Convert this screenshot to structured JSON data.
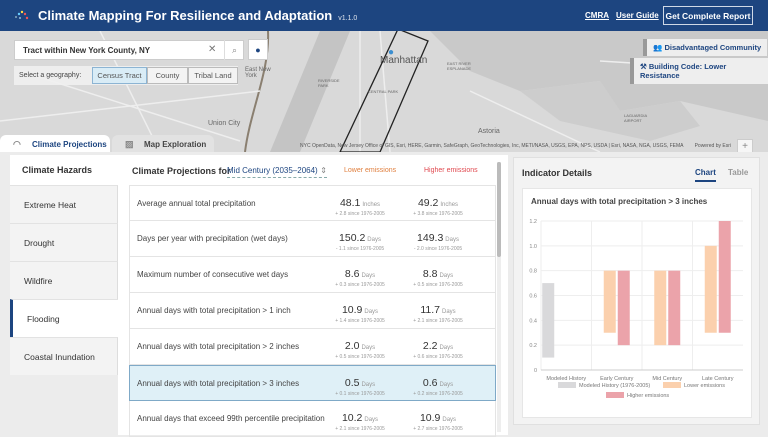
{
  "header": {
    "title": "Climate Mapping For Resilience and Adaptation",
    "version": "v1.1.0",
    "links": [
      "CMRA",
      "User Guide"
    ],
    "report_button": "Get Complete Report"
  },
  "map": {
    "search_value": "Tract within New York County, NY",
    "geography_label": "Select a geography:",
    "geographies": [
      "Census Tract",
      "County",
      "Tribal Land"
    ],
    "selected_geography": "Census Tract",
    "labels": [
      "Manhattan",
      "Union City",
      "Astoria",
      "East New York",
      "RIVERSIDE PARK",
      "CENTRAL PARK",
      "EAST RIVER ESPLANADE",
      "LAGUARDIA AIRPORT"
    ],
    "badges": [
      "Disadvantaged Community",
      "Building Code: Lower Resistance"
    ],
    "zoom_in": "+",
    "zoom_out": "−",
    "attribution": "NYC OpenData, New Jersey Office of GIS, Esri, HERE, Garmin, SafeGraph, GeoTechnologies, Inc, METI/NASA, USGS, EPA, NPS, USDA | Esri, NASA, NGA, USGS, FEMA",
    "powered": "Powered by Esri"
  },
  "tabs": [
    "Climate Projections",
    "Map Exploration"
  ],
  "sidebar": {
    "title": "Climate Hazards",
    "items": [
      "Extreme Heat",
      "Drought",
      "Wildfire",
      "Flooding",
      "Coastal Inundation"
    ],
    "selected": "Flooding"
  },
  "projections": {
    "title": "Climate Projections for",
    "period": "Mid Century (2035–2064)",
    "lower_label": "Lower emissions",
    "higher_label": "Higher emissions",
    "rows": [
      {
        "label": "Average annual total precipitation",
        "lo": "48.1",
        "lo_unit": "Inches",
        "lo_delta": "+ 2.8 since 1976-2005",
        "hi": "49.2",
        "hi_unit": "Inches",
        "hi_delta": "+ 3.8 since 1976-2005"
      },
      {
        "label": "Days per year with precipitation (wet days)",
        "lo": "150.2",
        "lo_unit": "Days",
        "lo_delta": "- 1.1 since 1976-2005",
        "hi": "149.3",
        "hi_unit": "Days",
        "hi_delta": "- 2.0 since 1976-2005"
      },
      {
        "label": "Maximum number of consecutive wet days",
        "lo": "8.6",
        "lo_unit": "Days",
        "lo_delta": "+ 0.3 since 1976-2005",
        "hi": "8.8",
        "hi_unit": "Days",
        "hi_delta": "+ 0.5 since 1976-2005"
      },
      {
        "label": "Annual days with total precipitation > 1 inch",
        "lo": "10.9",
        "lo_unit": "Days",
        "lo_delta": "+ 1.4 since 1976-2005",
        "hi": "11.7",
        "hi_unit": "Days",
        "hi_delta": "+ 2.1 since 1976-2005"
      },
      {
        "label": "Annual days with total precipitation > 2 inches",
        "lo": "2.0",
        "lo_unit": "Days",
        "lo_delta": "+ 0.5 since 1976-2005",
        "hi": "2.2",
        "hi_unit": "Days",
        "hi_delta": "+ 0.6 since 1976-2005"
      },
      {
        "label": "Annual days with total precipitation > 3 inches",
        "lo": "0.5",
        "lo_unit": "Days",
        "lo_delta": "+ 0.1 since 1976-2005",
        "hi": "0.6",
        "hi_unit": "Days",
        "hi_delta": "+ 0.2 since 1976-2005"
      },
      {
        "label": "Annual days that exceed 99th percentile precipitation",
        "lo": "10.2",
        "lo_unit": "Days",
        "lo_delta": "+ 2.1 since 1976-2005",
        "hi": "10.9",
        "hi_unit": "Days",
        "hi_delta": "+ 2.7 since 1976-2005"
      }
    ],
    "selected_row": 5
  },
  "details": {
    "title": "Indicator Details",
    "tabs": [
      "Chart",
      "Table"
    ],
    "active_tab": "Chart"
  },
  "chart_data": {
    "type": "bar",
    "title": "Annual days with total precipitation > 3 inches",
    "categories": [
      "Modeled History",
      "Early Century",
      "Mid Century",
      "Late Century"
    ],
    "ylim": [
      0,
      1.2
    ],
    "yticks": [
      "0",
      "0.2",
      "0.4",
      "0.6",
      "0.8",
      "1.0",
      "1.2"
    ],
    "grid": true,
    "legend_position": "bottom",
    "series": [
      {
        "name": "Modeled History (1976-2005)",
        "color": "#d9d9db",
        "ranges": [
          [
            0.1,
            0.7
          ],
          null,
          null,
          null
        ]
      },
      {
        "name": "Lower emissions",
        "color": "#fbd0ad",
        "ranges": [
          null,
          [
            0.3,
            0.8
          ],
          [
            0.2,
            0.8
          ],
          [
            0.3,
            1.0
          ]
        ]
      },
      {
        "name": "Higher emissions",
        "color": "#eba3aa",
        "ranges": [
          null,
          [
            0.2,
            0.8
          ],
          [
            0.2,
            0.8
          ],
          [
            0.3,
            1.2
          ]
        ]
      }
    ]
  }
}
